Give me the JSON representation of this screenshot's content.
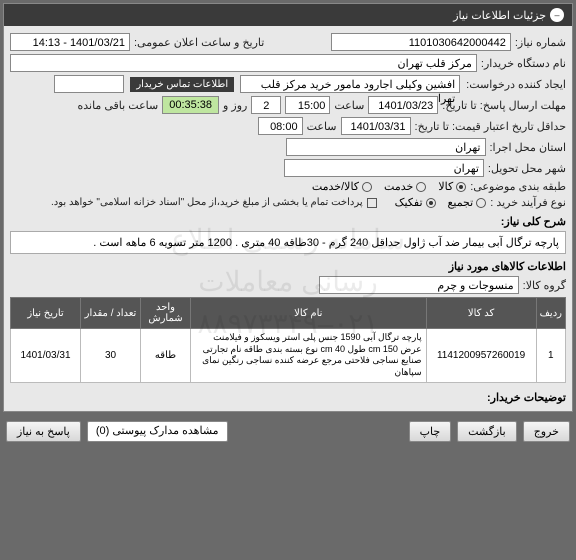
{
  "header": {
    "title": "جزئیات اطلاعات نیاز"
  },
  "fields": {
    "need_number_label": "شماره نیاز:",
    "need_number": "1101030642000442",
    "announce_date_label": "تاریخ و ساعت اعلان عمومی:",
    "announce_date": "1401/03/21 - 14:13",
    "buyer_label": "نام دستگاه خریدار:",
    "buyer": "مرکز قلب تهران",
    "creator_label": "ایجاد کننده درخواست:",
    "creator": "افشین وکیلی اجارود مامور خرید مرکز قلب تهران",
    "contact_badge": "اطلاعات تماس خریدار",
    "deadline_label": "مهلت ارسال پاسخ: تا تاریخ:",
    "deadline_date": "1401/03/23",
    "time_label": "ساعت",
    "deadline_time": "15:00",
    "days_label": "روز و",
    "days": "2",
    "remain_time": "00:35:38",
    "remain_label": "ساعت باقی مانده",
    "validity_label": "حداقل تاریخ اعتبار قیمت: تا تاریخ:",
    "validity_date": "1401/03/31",
    "validity_time": "08:00",
    "exec_city_label": "استان محل اجرا:",
    "exec_city": "تهران",
    "deliver_city_label": "شهر محل تحویل:",
    "deliver_city": "تهران"
  },
  "category": {
    "label": "طبقه بندی موضوعی:",
    "options": [
      "کالا",
      "خدمت",
      "کالا/خدمت"
    ],
    "selected": 0
  },
  "buy_process": {
    "label": "نوع فرآیند خرید :",
    "options": [
      "تجمیع",
      "تفکیک"
    ],
    "selected": 1,
    "note_check": "پرداخت تمام یا بخشی از مبلغ خرید،از محل \"اسناد خزانه اسلامی\" خواهد بود."
  },
  "need_desc": {
    "title": "شرح کلی نیاز:",
    "text": "پارچه ترگال آبی بیمار ضد آب ژاول حداقل 240 گرم - 30طاقه 40 متری . 1200 متر تسویه 6 ماهه است ."
  },
  "items_section_title": "اطلاعات کالاهای مورد نیاز",
  "group": {
    "label": "گروه کالا:",
    "value": "منسوجات و چرم"
  },
  "table": {
    "columns": [
      "ردیف",
      "کد کالا",
      "نام کالا",
      "واحد شمارش",
      "تعداد / مقدار",
      "تاریخ نیاز"
    ],
    "rows": [
      {
        "idx": "1",
        "code": "1141200957260019",
        "name": "پارچه ترگال آبی 1590 جنس پلی استر ویسکوز و فیلامنت عرض cm 150 طول cm 40 نوع بسته بندی طاقه نام تجارتی صنایع نساجی فلاحتی مرجع عرضه کننده نساجی رنگین نمای سپاهان",
        "unit": "طاقه",
        "qty": "30",
        "date": "1401/03/31"
      }
    ]
  },
  "buyer_notes_label": "توضیحات خریدار:",
  "footer": {
    "respond": "پاسخ به نیاز",
    "attachments": "مشاهده مدارک پیوستی (0)",
    "print": "چاپ",
    "back": "بازگشت",
    "exit": "خروج"
  },
  "colors": {
    "headerBg": "#3a3a3a",
    "bodyBg": "#6a6a6a",
    "panelBg": "#e8e8e8"
  }
}
